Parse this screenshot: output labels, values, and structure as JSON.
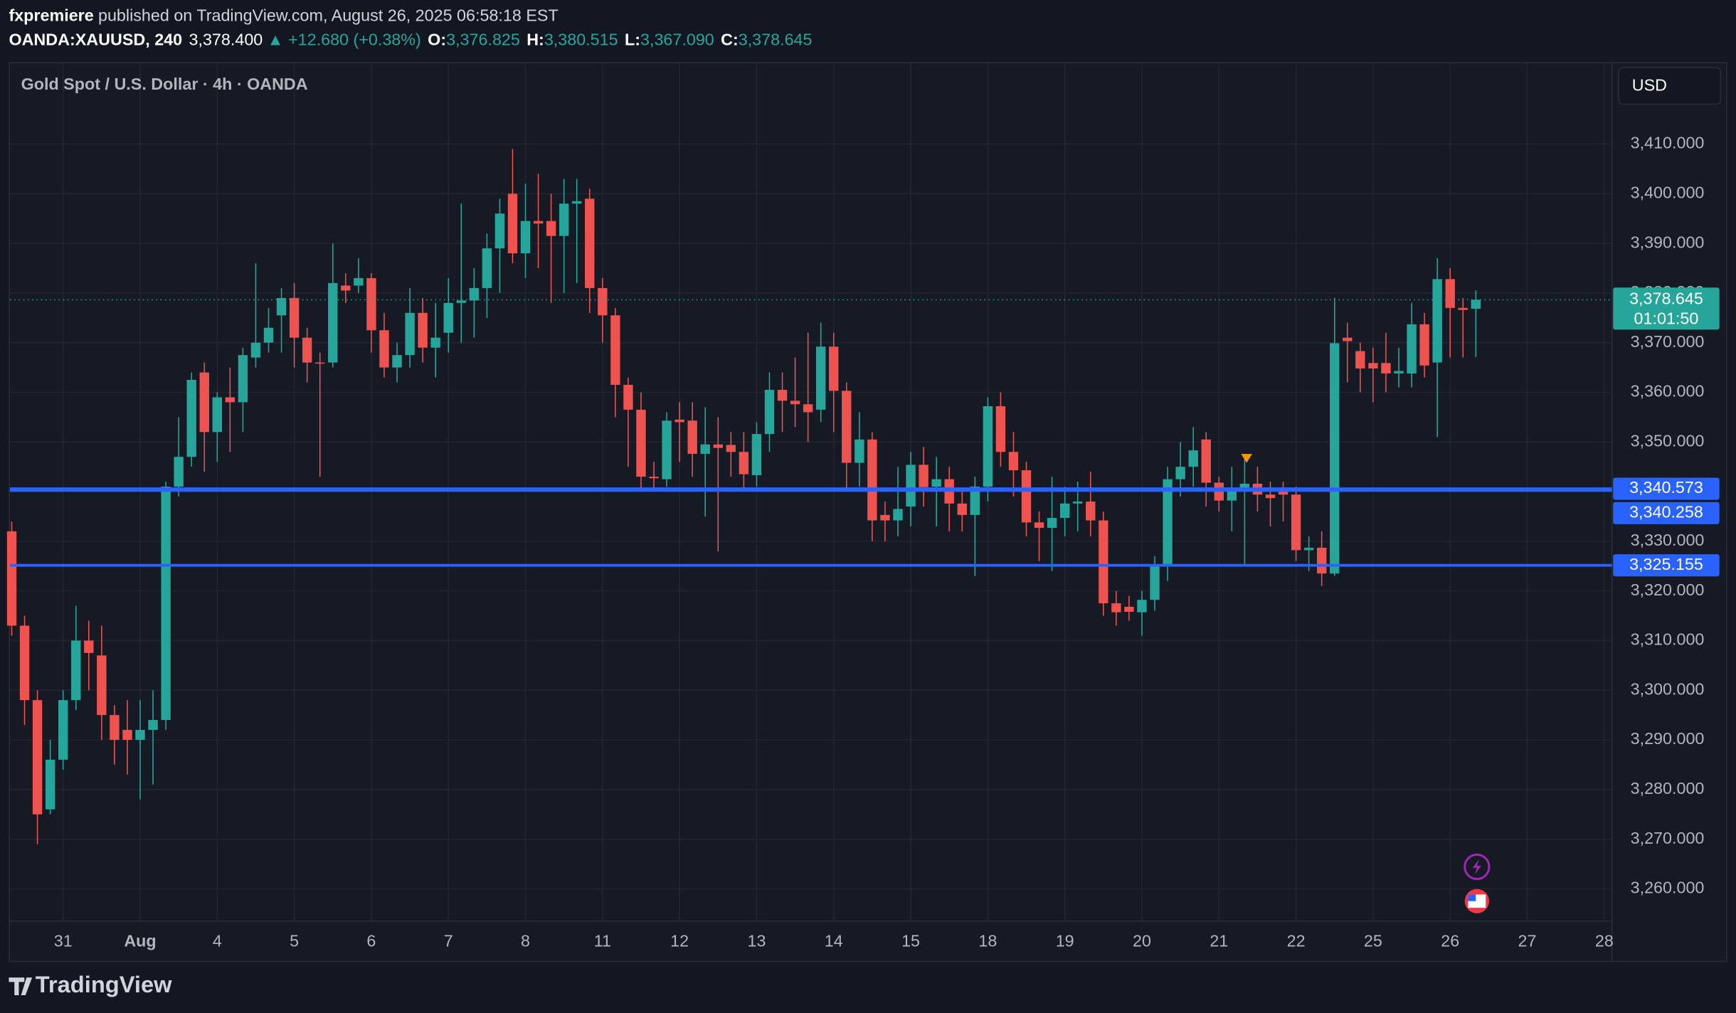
{
  "header": {
    "author": "fxpremiere",
    "published": "published on TradingView.com, August 26, 2025 06:58:18 EST",
    "symbol": "OANDA:XAUUSD, 240",
    "last": "3,378.400",
    "change": "▲ +12.680 (+0.38%)",
    "ohlc": [
      {
        "label": "O:",
        "value": "3,376.825"
      },
      {
        "label": "H:",
        "value": "3,380.515"
      },
      {
        "label": "L:",
        "value": "3,367.090"
      },
      {
        "label": "C:",
        "value": "3,378.645"
      }
    ]
  },
  "chart_data": {
    "type": "candlestick",
    "title": "Gold Spot / U.S. Dollar · 4h · OANDA",
    "currency": "USD",
    "categories": [
      null,
      null,
      null,
      null,
      "31",
      null,
      null,
      null,
      null,
      null,
      "Aug",
      null,
      null,
      null,
      null,
      null,
      "4",
      null,
      null,
      null,
      null,
      null,
      "5",
      null,
      null,
      null,
      null,
      null,
      "6",
      null,
      null,
      null,
      null,
      null,
      "7",
      null,
      null,
      null,
      null,
      null,
      "8",
      null,
      null,
      null,
      null,
      null,
      "11",
      null,
      null,
      null,
      null,
      null,
      "12",
      null,
      null,
      null,
      null,
      null,
      "13",
      null,
      null,
      null,
      null,
      null,
      "14",
      null,
      null,
      null,
      null,
      null,
      "15",
      null,
      null,
      null,
      null,
      null,
      "18",
      null,
      null,
      null,
      null,
      null,
      "19",
      null,
      null,
      null,
      null,
      null,
      "20",
      null,
      null,
      null,
      null,
      null,
      "21",
      null,
      null,
      null,
      null,
      null,
      "22",
      null,
      null,
      null,
      null,
      null,
      "25",
      null,
      null,
      null,
      null,
      null,
      "26",
      null,
      null,
      null,
      null,
      null,
      "27",
      null,
      null,
      null,
      null,
      null,
      "28"
    ],
    "open": [
      3332,
      3313,
      3298,
      3276,
      3286,
      3298,
      3310,
      3307,
      3295,
      3292,
      3290,
      3292,
      3294,
      3341,
      3347,
      3364,
      3352,
      3359,
      3358,
      3367,
      3370,
      3375.5,
      3379,
      3371,
      3366,
      3366,
      3381.5,
      3381.5,
      3383,
      3372.5,
      3365,
      3367.5,
      3376,
      3369,
      3372,
      3378,
      3378.5,
      3381,
      3389,
      3400,
      3388,
      3394.5,
      3394.5,
      3391.5,
      3398,
      3399,
      3381,
      3375.5,
      3361.5,
      3356.5,
      3343,
      3342.5,
      3354.5,
      3354.3,
      3347.6,
      3349.5,
      3349.4,
      3348,
      3343.3,
      3351.6,
      3360.5,
      3358.3,
      3357.6,
      3356.5,
      3369.2,
      3360.3,
      3345.8,
      3350.5,
      3335.3,
      3334.2,
      3337,
      3345.4,
      3341,
      3342.5,
      3337.6,
      3335.3,
      3341,
      3357.2,
      3348,
      3344.3,
      3333.8,
      3332.7,
      3334.7,
      3337.6,
      3338,
      3334.2,
      3317.5,
      3316.8,
      3315.7,
      3318.2,
      3324.9,
      3342.5,
      3345,
      3350.5,
      3341.8,
      3338.2,
      3340.2,
      3341.6,
      3339.4,
      3340,
      3339.4,
      3328.2,
      3328.7,
      3323.5,
      3371,
      3368.3,
      3365.9,
      3365.9,
      3363.8,
      3363.8,
      3373.7,
      3366,
      3382.8,
      3377,
      3376.825,
      null,
      null,
      null,
      null,
      null,
      null,
      null,
      null,
      null,
      null
    ],
    "high": [
      3334,
      3315,
      3300,
      3290,
      3300,
      3317,
      3314,
      3313,
      3297,
      3298,
      3298,
      3300,
      3342,
      3355,
      3364,
      3366,
      3360,
      3365,
      3369,
      3386,
      3377,
      3381,
      3382,
      3373,
      3368,
      3390,
      3384,
      3387,
      3384,
      3376,
      3370,
      3381,
      3379,
      3378,
      3383,
      3398,
      3385,
      3392,
      3399,
      3409,
      3402,
      3404,
      3400,
      3403,
      3403,
      3401,
      3383,
      3377,
      3363,
      3360,
      3346,
      3356,
      3358,
      3358,
      3357,
      3355,
      3352,
      3352,
      3354,
      3364,
      3364,
      3367,
      3372,
      3374,
      3372,
      3362,
      3356,
      3352,
      3338,
      3345,
      3348,
      3349,
      3347,
      3345,
      3340,
      3343,
      3359,
      3360,
      3352,
      3346,
      3336,
      3343,
      3341,
      3342,
      3344,
      3336,
      3320,
      3319,
      3320,
      3327,
      3345,
      3350,
      3353,
      3352,
      3343,
      3345,
      3347,
      3345,
      3342,
      3342,
      3341,
      3331,
      3332,
      3379,
      3374,
      3370,
      3369,
      3372,
      3369,
      3378,
      3376,
      3387,
      3385,
      3379,
      3380.515,
      null,
      null,
      null,
      null,
      null,
      null,
      null,
      null,
      null,
      null
    ],
    "low": [
      3311,
      3293,
      3269,
      3275,
      3284,
      3296,
      3300,
      3290,
      3285,
      3283,
      3278,
      3281,
      3292,
      3339,
      3345,
      3344,
      3346,
      3348,
      3352,
      3365,
      3368,
      3368,
      3365,
      3362,
      3343,
      3365,
      3378,
      3380,
      3368,
      3363,
      3362,
      3365,
      3366,
      3363,
      3368,
      3370,
      3371,
      3375,
      3380,
      3386,
      3383,
      3385,
      3378,
      3380,
      3382,
      3376,
      3370,
      3355,
      3345,
      3340,
      3340,
      3341,
      3346,
      3343,
      3335,
      3328,
      3343,
      3340,
      3341,
      3348,
      3352,
      3353,
      3350,
      3354,
      3352,
      3340,
      3341,
      3330,
      3330,
      3331,
      3333,
      3337,
      3333,
      3332,
      3332,
      3323,
      3338,
      3345,
      3339,
      3331,
      3326,
      3324,
      3331,
      3332,
      3331,
      3315,
      3313,
      3314,
      3311,
      3316,
      3322,
      3339,
      3341,
      3337,
      3336,
      3332,
      3325,
      3336,
      3333,
      3334,
      3326,
      3324,
      3321,
      3323,
      3362,
      3360,
      3358,
      3360,
      3361,
      3361,
      3363,
      3351,
      3367,
      3367,
      3367.09,
      null,
      null,
      null,
      null,
      null,
      null,
      null,
      null,
      null,
      null
    ],
    "close": [
      3313,
      3298,
      3275,
      3286,
      3298,
      3310,
      3307.5,
      3295,
      3290,
      3290,
      3292,
      3294,
      3341,
      3347,
      3362.5,
      3352,
      3359,
      3358,
      3367.5,
      3370,
      3373,
      3379,
      3371,
      3366,
      3365.8,
      3382,
      3380.5,
      3383,
      3372.5,
      3365,
      3367.5,
      3376,
      3369,
      3371,
      3378,
      3378.5,
      3381,
      3389,
      3396,
      3388,
      3394.5,
      3394,
      3391.5,
      3398,
      3398.5,
      3381,
      3375.5,
      3361.5,
      3356.5,
      3343,
      3342.7,
      3354.3,
      3354,
      3347.6,
      3349.5,
      3348.8,
      3348,
      3343.5,
      3351.6,
      3360.5,
      3358.3,
      3357.6,
      3356,
      3369.2,
      3360.3,
      3345.8,
      3350.5,
      3334.2,
      3334.2,
      3336.5,
      3345.4,
      3340.9,
      3342.5,
      3337.6,
      3335.3,
      3341,
      3357.2,
      3348,
      3344.3,
      3333.8,
      3332.7,
      3334.7,
      3337.6,
      3338,
      3334.2,
      3317.5,
      3315.7,
      3315.8,
      3318.2,
      3324.9,
      3342.5,
      3345,
      3348.3,
      3341.8,
      3338.2,
      3340.2,
      3341.6,
      3339.4,
      3338.7,
      3339.4,
      3328.2,
      3328.7,
      3323.5,
      3369.9,
      3370.3,
      3364.8,
      3364.8,
      3363.8,
      3364.3,
      3373.7,
      3365.4,
      3382.8,
      3377,
      3376.6,
      3378.645,
      null,
      null,
      null,
      null,
      null,
      null,
      null,
      null,
      null,
      null
    ],
    "up_color": "#26a69a",
    "down_color": "#ef5350",
    "ylim": [
      3253.5,
      3426.3
    ],
    "yticks": [
      {
        "value": 3260,
        "label": "3,260.000"
      },
      {
        "value": 3270,
        "label": "3,270.000"
      },
      {
        "value": 3280,
        "label": "3,280.000"
      },
      {
        "value": 3290,
        "label": "3,290.000"
      },
      {
        "value": 3300,
        "label": "3,300.000"
      },
      {
        "value": 3310,
        "label": "3,310.000"
      },
      {
        "value": 3320,
        "label": "3,320.000"
      },
      {
        "value": 3330,
        "label": "3,330.000"
      },
      {
        "value": 3340,
        "label": "3,340.000"
      },
      {
        "value": 3350,
        "label": "3,350.000"
      },
      {
        "value": 3360,
        "label": "3,360.000"
      },
      {
        "value": 3370,
        "label": "3,370.000"
      },
      {
        "value": 3380,
        "label": "3,380.000"
      },
      {
        "value": 3390,
        "label": "3,390.000"
      },
      {
        "value": 3400,
        "label": "3,400.000"
      },
      {
        "value": 3410,
        "label": "3,410.000"
      }
    ],
    "grid": true,
    "levels": [
      {
        "value": 3340.573,
        "label": "3,340.573",
        "color": "#2962ff"
      },
      {
        "value": 3340.258,
        "label": "3,340.258",
        "color": "#2962ff"
      },
      {
        "value": 3325.155,
        "label": "3,325.155",
        "color": "#2962ff"
      }
    ],
    "last_price": {
      "value": 3378.645,
      "label": "3,378.645",
      "countdown": "01:01:50",
      "color": "#26a69a"
    }
  },
  "footer": {
    "brand": "TradingView"
  }
}
